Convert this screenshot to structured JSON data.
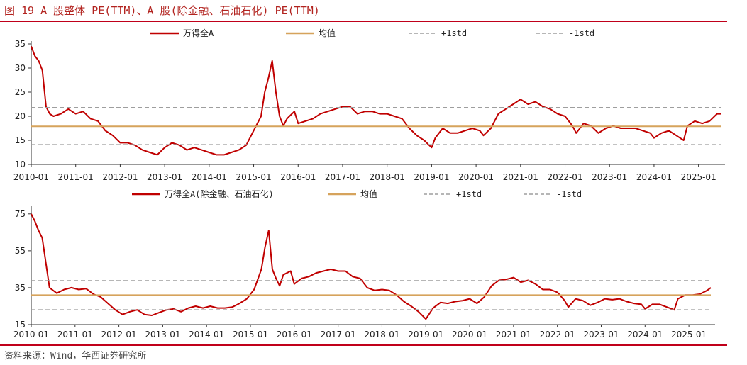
{
  "header": {
    "title": "图 19 A 股整体 PE(TTM)、A 股(除金融、石油石化) PE(TTM)"
  },
  "footer": {
    "source": "资料来源：Wind，华西证券研究所"
  },
  "colors": {
    "series": "#c00000",
    "mean": "#d6a35c",
    "std": "#9e9e9e",
    "rule": "#c0001a"
  },
  "chart_data": [
    {
      "type": "line",
      "title": "",
      "xlabel": "",
      "ylabel": "",
      "x_ticks": [
        "2010-01",
        "2011-01",
        "2012-01",
        "2013-01",
        "2014-01",
        "2015-01",
        "2016-01",
        "2017-01",
        "2018-01",
        "2019-01",
        "2020-01",
        "2021-01",
        "2022-01",
        "2023-01",
        "2024-01",
        "2025-01"
      ],
      "y_ticks": [
        10,
        15,
        20,
        25,
        30,
        35
      ],
      "ylim": [
        10,
        35
      ],
      "xlim": [
        "2010-01",
        "2025-07"
      ],
      "legend_position": "top",
      "series": [
        {
          "name": "万得全A",
          "style": "solid",
          "color": "#c00000",
          "points": [
            [
              "2010-01",
              34.5
            ],
            [
              "2010-02",
              32.5
            ],
            [
              "2010-03",
              31.5
            ],
            [
              "2010-04",
              29.5
            ],
            [
              "2010-05",
              22.0
            ],
            [
              "2010-06",
              20.5
            ],
            [
              "2010-07",
              20.0
            ],
            [
              "2010-09",
              20.5
            ],
            [
              "2010-11",
              21.5
            ],
            [
              "2011-01",
              20.5
            ],
            [
              "2011-03",
              21.0
            ],
            [
              "2011-05",
              19.5
            ],
            [
              "2011-07",
              19.0
            ],
            [
              "2011-09",
              17.0
            ],
            [
              "2011-11",
              16.0
            ],
            [
              "2012-01",
              14.5
            ],
            [
              "2012-03",
              14.5
            ],
            [
              "2012-05",
              14.0
            ],
            [
              "2012-07",
              13.0
            ],
            [
              "2012-09",
              12.5
            ],
            [
              "2012-11",
              12.0
            ],
            [
              "2013-01",
              13.5
            ],
            [
              "2013-03",
              14.5
            ],
            [
              "2013-05",
              14.0
            ],
            [
              "2013-07",
              13.0
            ],
            [
              "2013-09",
              13.5
            ],
            [
              "2013-11",
              13.0
            ],
            [
              "2014-01",
              12.5
            ],
            [
              "2014-03",
              12.0
            ],
            [
              "2014-05",
              12.0
            ],
            [
              "2014-07",
              12.5
            ],
            [
              "2014-09",
              13.0
            ],
            [
              "2014-11",
              14.0
            ],
            [
              "2015-01",
              17.0
            ],
            [
              "2015-03",
              20.0
            ],
            [
              "2015-04",
              25.0
            ],
            [
              "2015-05",
              28.0
            ],
            [
              "2015-06",
              31.5
            ],
            [
              "2015-07",
              25.0
            ],
            [
              "2015-08",
              20.0
            ],
            [
              "2015-09",
              18.0
            ],
            [
              "2015-10",
              19.5
            ],
            [
              "2015-12",
              21.0
            ],
            [
              "2016-01",
              18.5
            ],
            [
              "2016-03",
              19.0
            ],
            [
              "2016-05",
              19.5
            ],
            [
              "2016-07",
              20.5
            ],
            [
              "2016-09",
              21.0
            ],
            [
              "2016-11",
              21.5
            ],
            [
              "2017-01",
              22.0
            ],
            [
              "2017-03",
              22.0
            ],
            [
              "2017-05",
              20.5
            ],
            [
              "2017-07",
              21.0
            ],
            [
              "2017-09",
              21.0
            ],
            [
              "2017-11",
              20.5
            ],
            [
              "2018-01",
              20.5
            ],
            [
              "2018-03",
              20.0
            ],
            [
              "2018-05",
              19.5
            ],
            [
              "2018-07",
              17.5
            ],
            [
              "2018-09",
              16.0
            ],
            [
              "2018-11",
              15.0
            ],
            [
              "2019-01",
              13.5
            ],
            [
              "2019-02",
              15.5
            ],
            [
              "2019-04",
              17.5
            ],
            [
              "2019-06",
              16.5
            ],
            [
              "2019-08",
              16.5
            ],
            [
              "2019-10",
              17.0
            ],
            [
              "2019-12",
              17.5
            ],
            [
              "2020-02",
              17.0
            ],
            [
              "2020-03",
              16.0
            ],
            [
              "2020-05",
              17.5
            ],
            [
              "2020-07",
              20.5
            ],
            [
              "2020-09",
              21.5
            ],
            [
              "2020-11",
              22.5
            ],
            [
              "2021-01",
              23.5
            ],
            [
              "2021-03",
              22.5
            ],
            [
              "2021-05",
              23.0
            ],
            [
              "2021-07",
              22.0
            ],
            [
              "2021-09",
              21.5
            ],
            [
              "2021-11",
              20.5
            ],
            [
              "2022-01",
              20.0
            ],
            [
              "2022-03",
              18.0
            ],
            [
              "2022-04",
              16.5
            ],
            [
              "2022-06",
              18.5
            ],
            [
              "2022-08",
              18.0
            ],
            [
              "2022-10",
              16.5
            ],
            [
              "2022-12",
              17.5
            ],
            [
              "2023-02",
              18.0
            ],
            [
              "2023-04",
              17.5
            ],
            [
              "2023-06",
              17.5
            ],
            [
              "2023-08",
              17.5
            ],
            [
              "2023-10",
              17.0
            ],
            [
              "2023-12",
              16.5
            ],
            [
              "2024-01",
              15.5
            ],
            [
              "2024-03",
              16.5
            ],
            [
              "2024-05",
              17.0
            ],
            [
              "2024-07",
              16.0
            ],
            [
              "2024-09",
              15.0
            ],
            [
              "2024-10",
              18.0
            ],
            [
              "2024-12",
              19.0
            ],
            [
              "2025-02",
              18.5
            ],
            [
              "2025-04",
              19.0
            ],
            [
              "2025-06",
              20.5
            ],
            [
              "2025-07",
              20.5
            ]
          ]
        },
        {
          "name": "均值",
          "style": "solid",
          "color": "#d6a35c",
          "values": [
            17.9
          ]
        },
        {
          "name": "+1std",
          "style": "dashed",
          "color": "#9e9e9e",
          "values": [
            21.8
          ]
        },
        {
          "name": "-1std",
          "style": "dashed",
          "color": "#9e9e9e",
          "values": [
            14.1
          ]
        }
      ]
    },
    {
      "type": "line",
      "title": "",
      "xlabel": "",
      "ylabel": "",
      "x_ticks": [
        "2010-01",
        "2011-01",
        "2012-01",
        "2013-01",
        "2014-01",
        "2015-01",
        "2016-01",
        "2017-01",
        "2018-01",
        "2019-01",
        "2020-01",
        "2021-01",
        "2022-01",
        "2023-01",
        "2024-01",
        "2025-01"
      ],
      "y_ticks": [
        15,
        35,
        55,
        75
      ],
      "ylim": [
        15,
        78
      ],
      "xlim": [
        "2010-01",
        "2025-07"
      ],
      "legend_position": "top",
      "series": [
        {
          "name": "万得全A(除金融、石油石化)",
          "style": "solid",
          "color": "#c00000",
          "points": [
            [
              "2010-01",
              75.0
            ],
            [
              "2010-02",
              71.0
            ],
            [
              "2010-03",
              66.0
            ],
            [
              "2010-04",
              62.0
            ],
            [
              "2010-06",
              35.0
            ],
            [
              "2010-08",
              32.0
            ],
            [
              "2010-10",
              34.0
            ],
            [
              "2010-12",
              35.0
            ],
            [
              "2011-02",
              34.0
            ],
            [
              "2011-04",
              34.5
            ],
            [
              "2011-06",
              31.5
            ],
            [
              "2011-08",
              30.0
            ],
            [
              "2011-10",
              26.5
            ],
            [
              "2011-12",
              23.0
            ],
            [
              "2012-02",
              20.5
            ],
            [
              "2012-04",
              22.0
            ],
            [
              "2012-06",
              23.0
            ],
            [
              "2012-08",
              20.5
            ],
            [
              "2012-10",
              20.0
            ],
            [
              "2012-12",
              21.5
            ],
            [
              "2013-02",
              23.0
            ],
            [
              "2013-04",
              23.5
            ],
            [
              "2013-06",
              22.0
            ],
            [
              "2013-08",
              24.0
            ],
            [
              "2013-10",
              25.0
            ],
            [
              "2013-12",
              24.0
            ],
            [
              "2014-02",
              25.0
            ],
            [
              "2014-04",
              24.0
            ],
            [
              "2014-06",
              24.0
            ],
            [
              "2014-08",
              24.5
            ],
            [
              "2014-10",
              26.5
            ],
            [
              "2014-12",
              29.0
            ],
            [
              "2015-02",
              34.0
            ],
            [
              "2015-04",
              45.0
            ],
            [
              "2015-05",
              57.0
            ],
            [
              "2015-06",
              66.0
            ],
            [
              "2015-07",
              45.0
            ],
            [
              "2015-08",
              40.0
            ],
            [
              "2015-09",
              36.0
            ],
            [
              "2015-10",
              42.0
            ],
            [
              "2015-12",
              44.0
            ],
            [
              "2016-01",
              37.0
            ],
            [
              "2016-03",
              40.0
            ],
            [
              "2016-05",
              41.0
            ],
            [
              "2016-07",
              43.0
            ],
            [
              "2016-09",
              44.0
            ],
            [
              "2016-11",
              45.0
            ],
            [
              "2017-01",
              44.0
            ],
            [
              "2017-03",
              44.0
            ],
            [
              "2017-05",
              41.0
            ],
            [
              "2017-07",
              40.0
            ],
            [
              "2017-09",
              35.0
            ],
            [
              "2017-11",
              33.5
            ],
            [
              "2018-01",
              34.0
            ],
            [
              "2018-03",
              33.5
            ],
            [
              "2018-05",
              31.0
            ],
            [
              "2018-07",
              27.5
            ],
            [
              "2018-09",
              25.0
            ],
            [
              "2018-11",
              22.0
            ],
            [
              "2019-01",
              18.0
            ],
            [
              "2019-03",
              24.0
            ],
            [
              "2019-05",
              27.0
            ],
            [
              "2019-07",
              26.5
            ],
            [
              "2019-09",
              27.5
            ],
            [
              "2019-11",
              28.0
            ],
            [
              "2020-01",
              29.0
            ],
            [
              "2020-03",
              26.5
            ],
            [
              "2020-05",
              30.0
            ],
            [
              "2020-07",
              36.0
            ],
            [
              "2020-09",
              39.0
            ],
            [
              "2020-11",
              39.5
            ],
            [
              "2021-01",
              40.5
            ],
            [
              "2021-03",
              38.0
            ],
            [
              "2021-05",
              39.0
            ],
            [
              "2021-07",
              37.0
            ],
            [
              "2021-09",
              34.0
            ],
            [
              "2021-11",
              34.0
            ],
            [
              "2022-01",
              32.5
            ],
            [
              "2022-03",
              28.0
            ],
            [
              "2022-04",
              24.5
            ],
            [
              "2022-06",
              29.0
            ],
            [
              "2022-08",
              28.0
            ],
            [
              "2022-10",
              25.5
            ],
            [
              "2022-12",
              27.0
            ],
            [
              "2023-02",
              29.0
            ],
            [
              "2023-04",
              28.5
            ],
            [
              "2023-06",
              29.0
            ],
            [
              "2023-08",
              27.5
            ],
            [
              "2023-10",
              26.5
            ],
            [
              "2023-12",
              26.0
            ],
            [
              "2024-01",
              23.5
            ],
            [
              "2024-03",
              26.0
            ],
            [
              "2024-05",
              26.0
            ],
            [
              "2024-07",
              24.5
            ],
            [
              "2024-09",
              23.0
            ],
            [
              "2024-10",
              29.0
            ],
            [
              "2024-12",
              31.0
            ],
            [
              "2025-02",
              31.0
            ],
            [
              "2025-04",
              31.5
            ],
            [
              "2025-06",
              33.5
            ],
            [
              "2025-07",
              35.0
            ]
          ]
        },
        {
          "name": "均值",
          "style": "solid",
          "color": "#d6a35c",
          "values": [
            31.0
          ]
        },
        {
          "name": "+1std",
          "style": "dashed",
          "color": "#9e9e9e",
          "values": [
            38.8
          ]
        },
        {
          "name": "-1std",
          "style": "dashed",
          "color": "#9e9e9e",
          "values": [
            23.0
          ]
        }
      ]
    }
  ]
}
